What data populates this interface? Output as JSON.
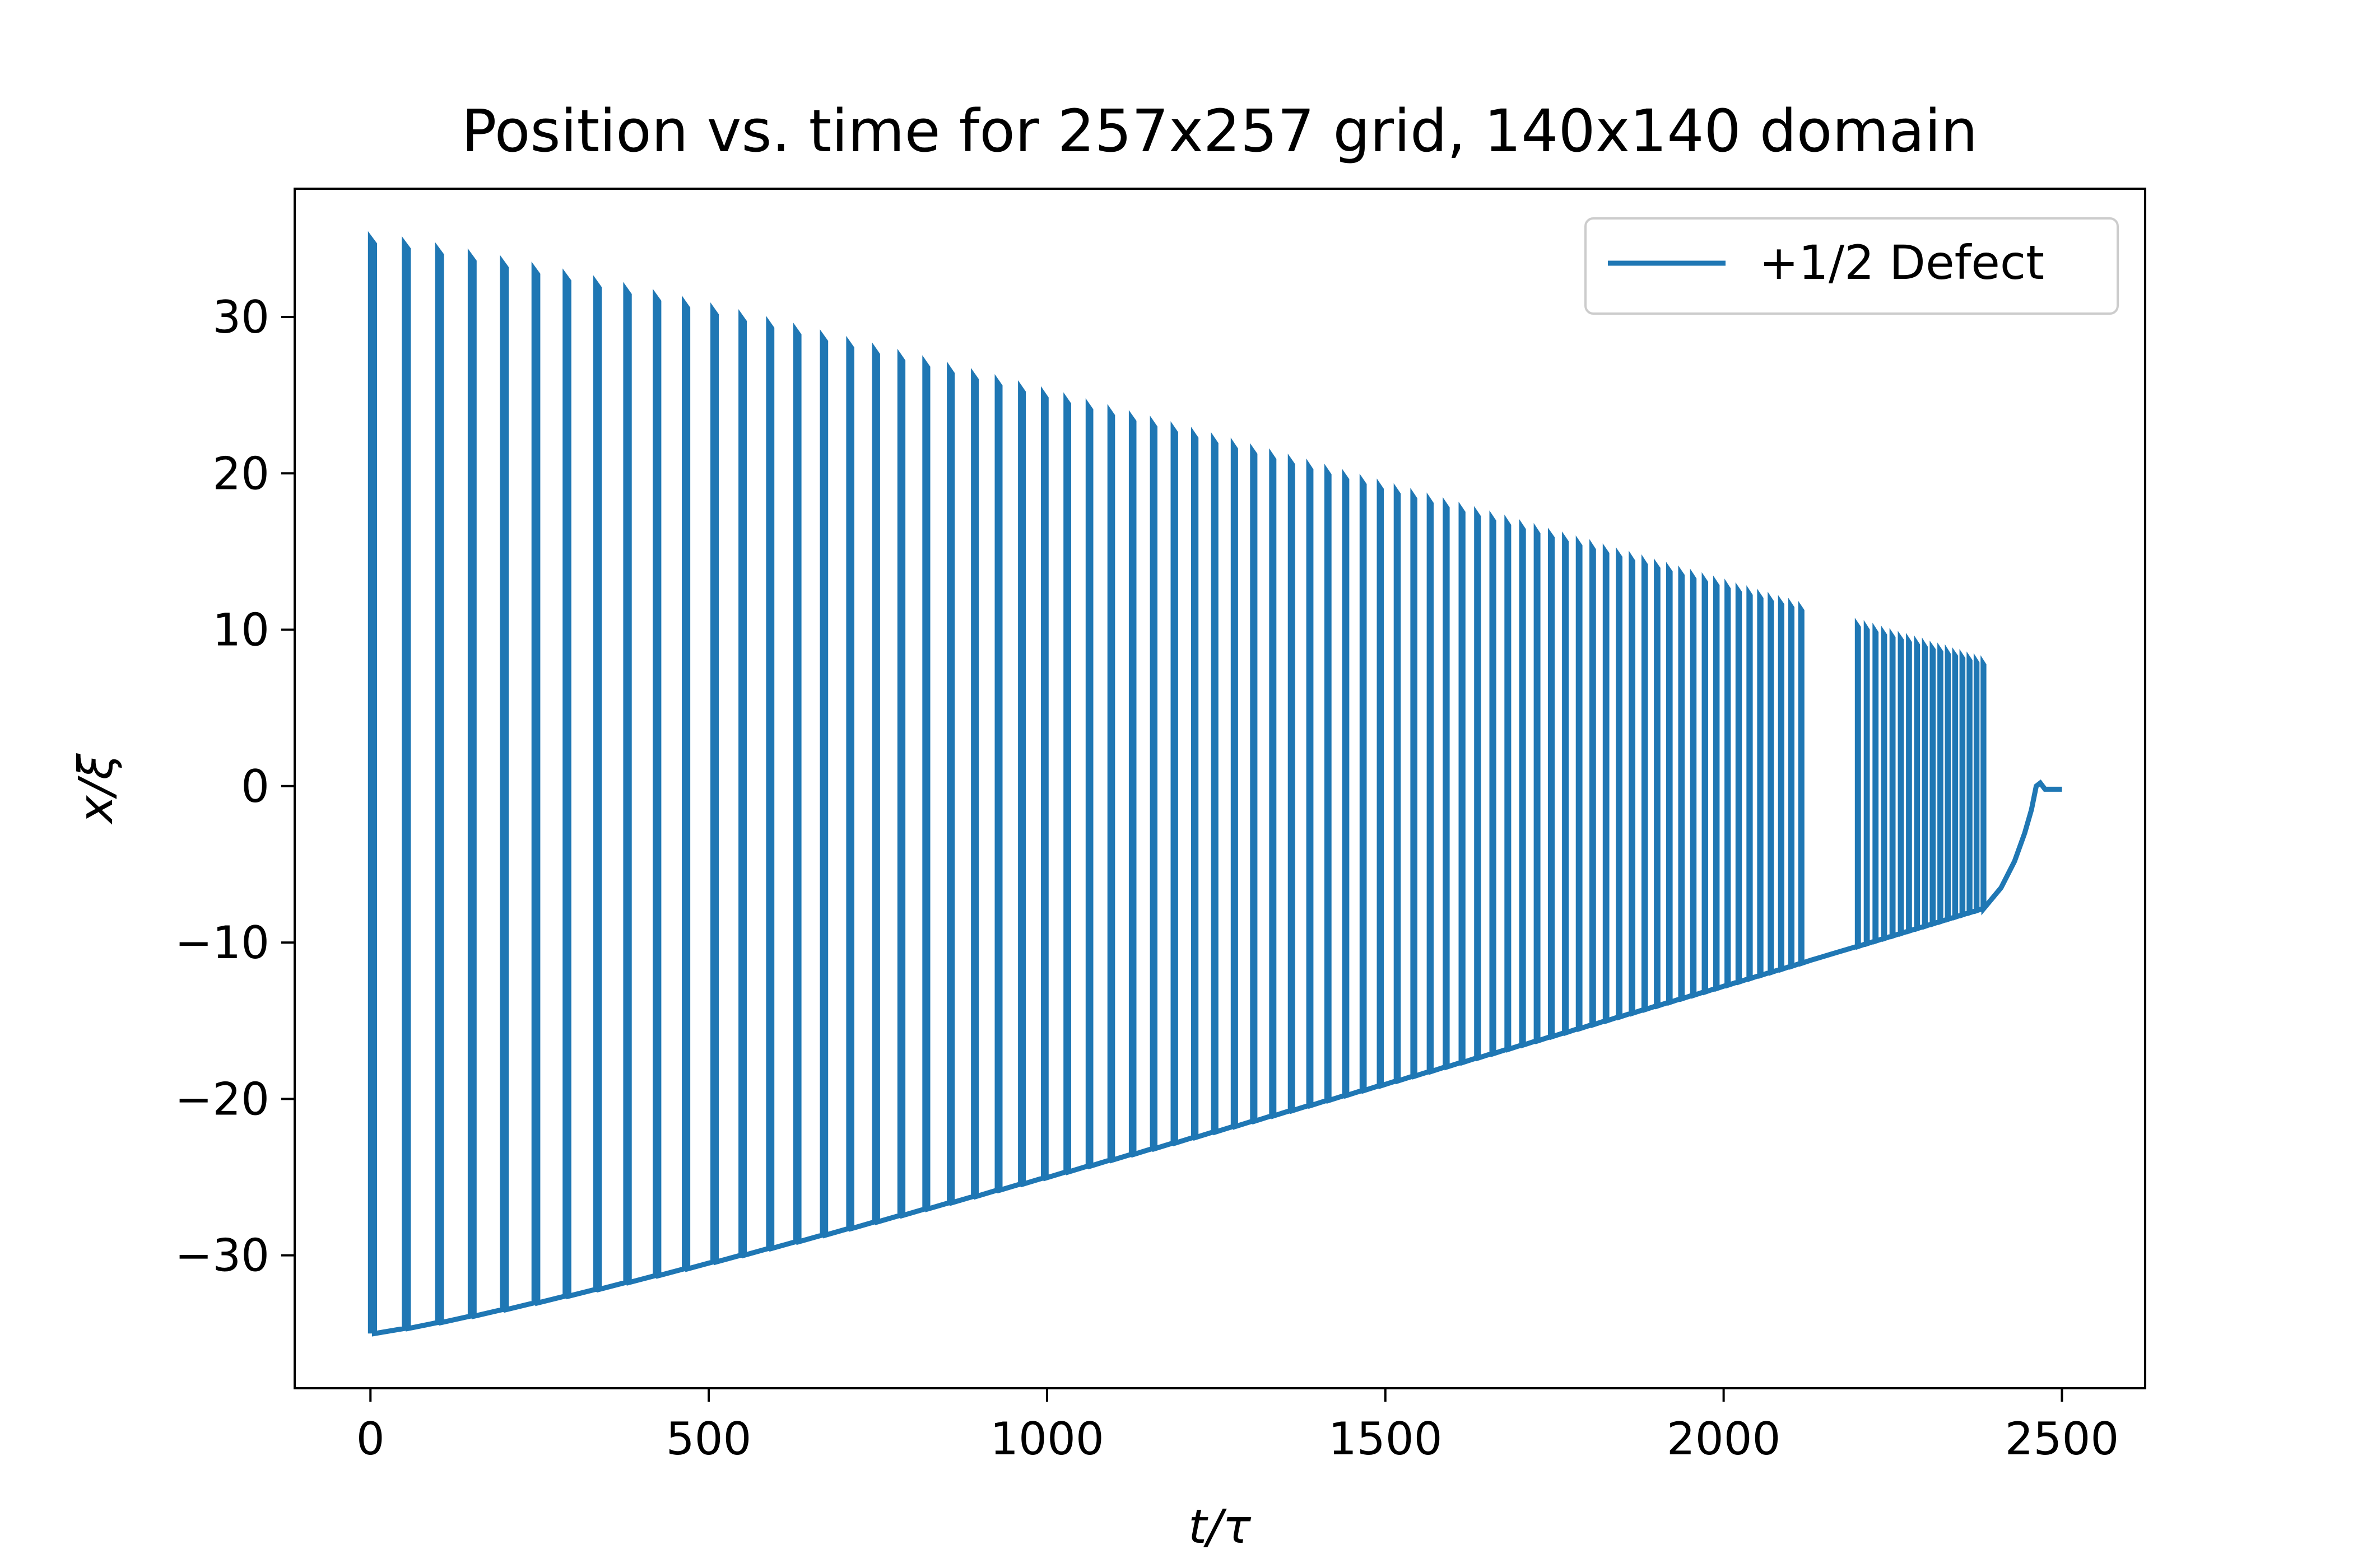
{
  "chart_data": {
    "type": "line",
    "title": "Position vs. time for 257x257 grid, 140x140 domain",
    "xlabel": "t/τ",
    "ylabel": "x/ξ",
    "xlim": [
      -112,
      2623
    ],
    "ylim": [
      -38.5,
      38.2
    ],
    "xticks": [
      0,
      500,
      1000,
      1500,
      2000,
      2500
    ],
    "yticks": [
      -30,
      -20,
      -10,
      0,
      10,
      20,
      30
    ],
    "xtick_labels": [
      "0",
      "500",
      "1000",
      "1500",
      "2000",
      "2500"
    ],
    "ytick_labels": [
      "−30",
      "−20",
      "−10",
      "0",
      "10",
      "20",
      "30"
    ],
    "grid": false,
    "legend_position": "top-right",
    "series": [
      {
        "name": "+1/2 Defect",
        "color": "#1f77b4",
        "oscillation": {
          "t_start": 0,
          "t_end_oscillation": 2385,
          "initial_amplitude": 35,
          "amplitude_decay_to": 7.8,
          "period_start": 50,
          "period_end": 10,
          "gap_upper_branch": [
            2125,
            2190
          ]
        },
        "tail": [
          [
            2385,
            -7.8
          ],
          [
            2410,
            -6.5
          ],
          [
            2430,
            -4.8
          ],
          [
            2445,
            -3.0
          ],
          [
            2455,
            -1.5
          ],
          [
            2462,
            0.0
          ],
          [
            2468,
            0.2
          ],
          [
            2475,
            -0.2
          ],
          [
            2500,
            -0.2
          ]
        ]
      }
    ]
  }
}
